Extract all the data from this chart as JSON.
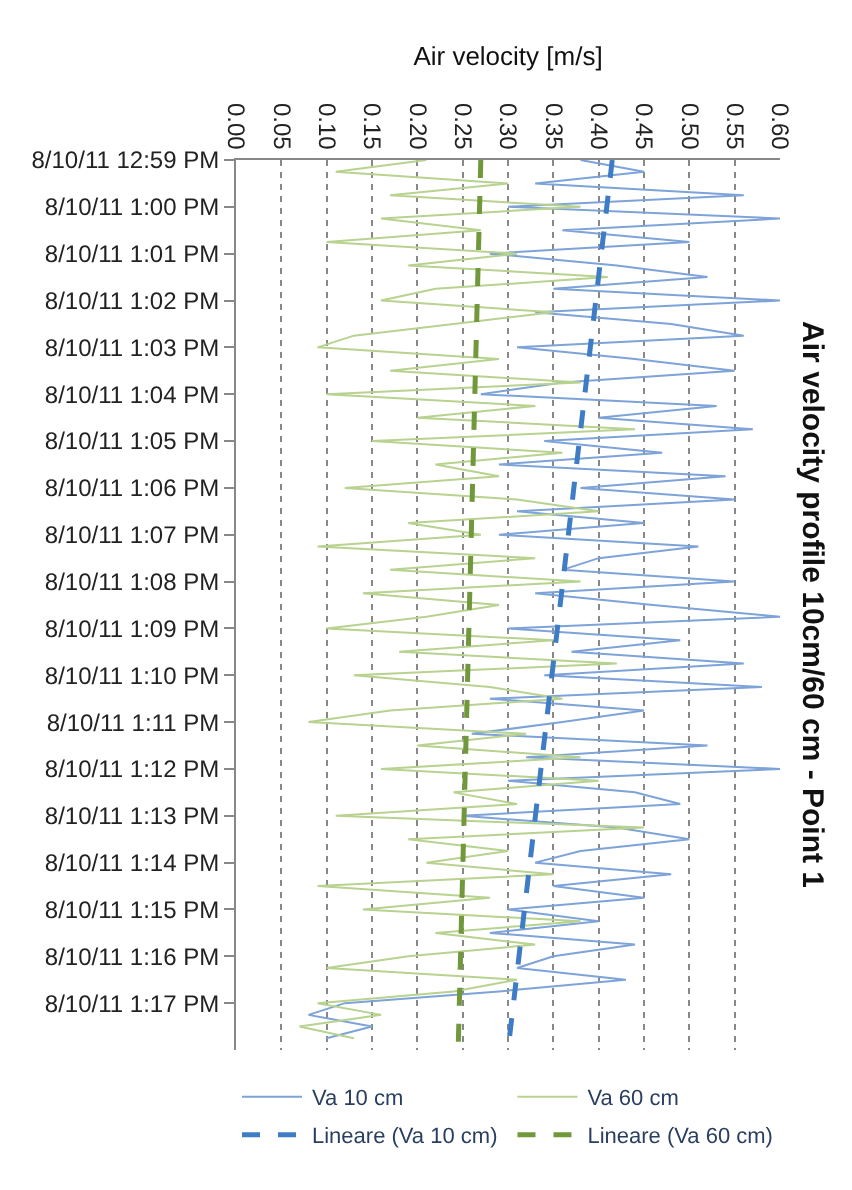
{
  "chart_data": {
    "type": "line",
    "title": "Air velocity profile 10cm/60 cm - Point 1",
    "xlabel": "Air velocity [m/s]",
    "orientation": "horizontal",
    "x": [
      "--08-10T12:59:00",
      "--08-10T12:59:15",
      "--08-10T12:59:30",
      "--08-10T12:59:45",
      "--08-10T13:00:00",
      "--08-10T13:00:15",
      "--08-10T13:00:30",
      "--08-10T13:00:45",
      "--08-10T13:01:00",
      "--08-10T13:01:15",
      "--08-10T13:01:30",
      "--08-10T13:01:45",
      "--08-10T13:02:00",
      "--08-10T13:02:15",
      "--08-10T13:02:30",
      "--08-10T13:02:45",
      "--08-10T13:03:00",
      "--08-10T13:03:15",
      "--08-10T13:03:30",
      "--08-10T13:03:45",
      "--08-10T13:04:00",
      "--08-10T13:04:15",
      "--08-10T13:04:30",
      "--08-10T13:04:45",
      "--08-10T13:05:00",
      "--08-10T13:05:15",
      "--08-10T13:05:30",
      "--08-10T13:05:45",
      "--08-10T13:06:00",
      "--08-10T13:06:15",
      "--08-10T13:06:30",
      "--08-10T13:06:45",
      "--08-10T13:07:00",
      "--08-10T13:07:15",
      "--08-10T13:07:30",
      "--08-10T13:07:45",
      "--08-10T13:08:00",
      "--08-10T13:08:15",
      "--08-10T13:08:30",
      "--08-10T13:08:45",
      "--08-10T13:09:00",
      "--08-10T13:09:15",
      "--08-10T13:09:30",
      "--08-10T13:09:45",
      "--08-10T13:10:00",
      "--08-10T13:10:15",
      "--08-10T13:10:30",
      "--08-10T13:10:45",
      "--08-10T13:11:00",
      "--08-10T13:11:15",
      "--08-10T13:11:30",
      "--08-10T13:11:45",
      "--08-10T13:12:00",
      "--08-10T13:12:15",
      "--08-10T13:12:30",
      "--08-10T13:12:45",
      "--08-10T13:13:00",
      "--08-10T13:13:15",
      "--08-10T13:13:30",
      "--08-10T13:13:45",
      "--08-10T13:14:00",
      "--08-10T13:14:15",
      "--08-10T13:14:30",
      "--08-10T13:14:45",
      "--08-10T13:15:00",
      "--08-10T13:15:15",
      "--08-10T13:15:30",
      "--08-10T13:15:45",
      "--08-10T13:16:00",
      "--08-10T13:16:15",
      "--08-10T13:16:30",
      "--08-10T13:16:45",
      "--08-10T13:17:00",
      "--08-10T13:17:15",
      "--08-10T13:17:30",
      "--08-10T13:17:45"
    ],
    "series": [
      {
        "name": "Va 10 cm",
        "color": "#7ea3d8",
        "line_style": "solid",
        "values": [
          0.38,
          0.45,
          0.33,
          0.56,
          0.3,
          0.6,
          0.36,
          0.5,
          0.28,
          0.42,
          0.52,
          0.35,
          0.6,
          0.33,
          0.48,
          0.56,
          0.31,
          0.44,
          0.55,
          0.36,
          0.27,
          0.53,
          0.4,
          0.57,
          0.34,
          0.47,
          0.29,
          0.54,
          0.38,
          0.55,
          0.31,
          0.45,
          0.29,
          0.51,
          0.4,
          0.36,
          0.55,
          0.33,
          0.46,
          0.6,
          0.3,
          0.49,
          0.37,
          0.56,
          0.34,
          0.58,
          0.28,
          0.45,
          0.36,
          0.26,
          0.52,
          0.32,
          0.6,
          0.3,
          0.44,
          0.49,
          0.25,
          0.42,
          0.5,
          0.38,
          0.33,
          0.48,
          0.35,
          0.45,
          0.3,
          0.4,
          0.28,
          0.44,
          0.35,
          0.31,
          0.43,
          0.29,
          0.12,
          0.08,
          0.15,
          0.1
        ]
      },
      {
        "name": "Va 60 cm",
        "color": "#b8d28f",
        "line_style": "solid",
        "values": [
          0.21,
          0.11,
          0.3,
          0.17,
          0.38,
          0.16,
          0.27,
          0.1,
          0.31,
          0.19,
          0.41,
          0.22,
          0.16,
          0.35,
          0.24,
          0.13,
          0.09,
          0.29,
          0.17,
          0.38,
          0.1,
          0.33,
          0.2,
          0.44,
          0.15,
          0.36,
          0.22,
          0.29,
          0.12,
          0.31,
          0.4,
          0.19,
          0.27,
          0.09,
          0.33,
          0.17,
          0.38,
          0.14,
          0.29,
          0.21,
          0.1,
          0.35,
          0.18,
          0.42,
          0.13,
          0.28,
          0.36,
          0.17,
          0.08,
          0.32,
          0.2,
          0.38,
          0.16,
          0.4,
          0.24,
          0.31,
          0.11,
          0.45,
          0.19,
          0.3,
          0.21,
          0.35,
          0.09,
          0.28,
          0.14,
          0.38,
          0.22,
          0.33,
          0.19,
          0.1,
          0.31,
          0.24,
          0.09,
          0.16,
          0.07,
          0.13
        ]
      },
      {
        "name": "Lineare (Va 10 cm)",
        "color": "#3f7cc6",
        "line_style": "dashed",
        "x": [
          "--08-10T12:59:00",
          "--08-10T13:18:00"
        ],
        "values": [
          0.415,
          0.3
        ]
      },
      {
        "name": "Lineare (Va 60 cm)",
        "color": "#71983a",
        "line_style": "dashed",
        "x": [
          "--08-10T12:59:00",
          "--08-10T13:18:00"
        ],
        "values": [
          0.27,
          0.245
        ]
      }
    ],
    "ylim": [
      "--08-10T13:18:00",
      "--08-10T12:59:00"
    ],
    "yticks": [
      {
        "value": "--08-10T12:59",
        "label": "8/10/11 12:59 PM"
      },
      {
        "value": "--08-10T13:00",
        "label": "8/10/11 1:00 PM"
      },
      {
        "value": "--08-10T13:01",
        "label": "8/10/11 1:01 PM"
      },
      {
        "value": "--08-10T13:02",
        "label": "8/10/11 1:02 PM"
      },
      {
        "value": "--08-10T13:03",
        "label": "8/10/11 1:03 PM"
      },
      {
        "value": "--08-10T13:04",
        "label": "8/10/11 1:04 PM"
      },
      {
        "value": "--08-10T13:05",
        "label": "8/10/11 1:05 PM"
      },
      {
        "value": "--08-10T13:06",
        "label": "8/10/11 1:06 PM"
      },
      {
        "value": "--08-10T13:07",
        "label": "8/10/11 1:07 PM"
      },
      {
        "value": "--08-10T13:08",
        "label": "8/10/11 1:08 PM"
      },
      {
        "value": "--08-10T13:09",
        "label": "8/10/11 1:09 PM"
      },
      {
        "value": "--08-10T13:10",
        "label": "8/10/11 1:10 PM"
      },
      {
        "value": "--08-10T13:11",
        "label": "8/10/11 1:11 PM"
      },
      {
        "value": "--08-10T13:12",
        "label": "8/10/11 1:12 PM"
      },
      {
        "value": "--08-10T13:13",
        "label": "8/10/11 1:13 PM"
      },
      {
        "value": "--08-10T13:14",
        "label": "8/10/11 1:14 PM"
      },
      {
        "value": "--08-10T13:15",
        "label": "8/10/11 1:15 PM"
      },
      {
        "value": "--08-10T13:16",
        "label": "8/10/11 1:16 PM"
      },
      {
        "value": "--08-10T13:17",
        "label": "8/10/11 1:17 PM"
      }
    ],
    "xlim": [
      0,
      0.6
    ],
    "xticks": [
      {
        "value": 0,
        "label": "0.00"
      },
      {
        "value": 0.05,
        "label": "0.05"
      },
      {
        "value": 0.1,
        "label": "0.10"
      },
      {
        "value": 0.15,
        "label": "0.15"
      },
      {
        "value": 0.2,
        "label": "0.20"
      },
      {
        "value": 0.25,
        "label": "0.25"
      },
      {
        "value": 0.3,
        "label": "0.30"
      },
      {
        "value": 0.35,
        "label": "0.35"
      },
      {
        "value": 0.4,
        "label": "0.40"
      },
      {
        "value": 0.45,
        "label": "0.45"
      },
      {
        "value": 0.5,
        "label": "0.50"
      },
      {
        "value": 0.55,
        "label": "0.55"
      },
      {
        "value": 0.6,
        "label": "0.60"
      }
    ],
    "grid": "x",
    "legend": "bottom",
    "marker": "none"
  }
}
